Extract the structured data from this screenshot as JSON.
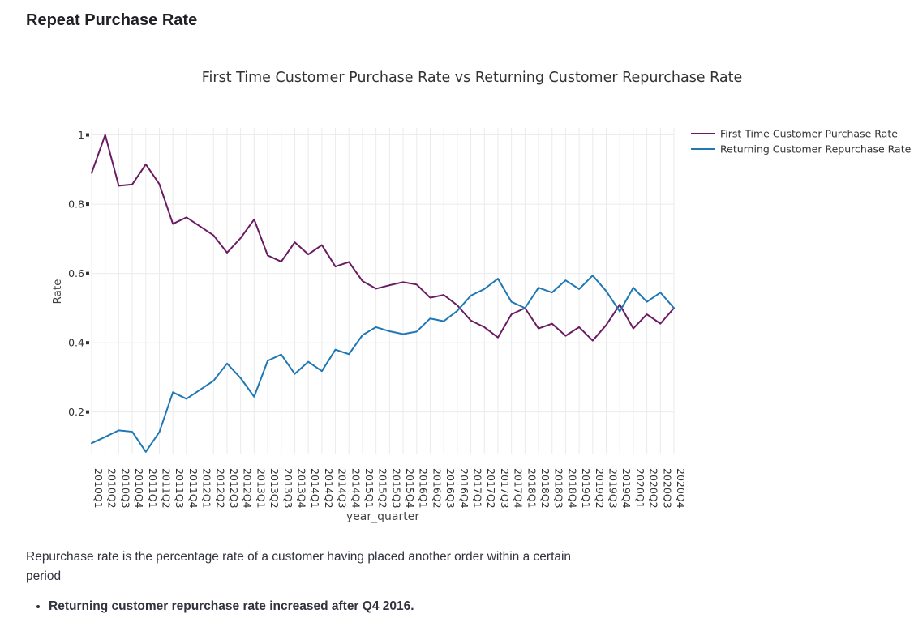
{
  "page": {
    "heading": "Repeat Purchase Rate",
    "description": "Repurchase rate is the percentage rate of a customer having placed another order within a certain period",
    "bullets": [
      "Returning customer repurchase rate increased after Q4 2016."
    ]
  },
  "colors": {
    "first_time": "#6a1b62",
    "returning": "#1f77b4",
    "grid": "#ebebeb",
    "text": "#444444"
  },
  "chart_data": {
    "type": "line",
    "title": "First Time Customer Purchase Rate vs Returning Customer Repurchase Rate",
    "xlabel": "year_quarter",
    "ylabel": "Rate",
    "ylim": [
      0.08,
      1.02
    ],
    "yticks": [
      0.2,
      0.4,
      0.6,
      0.8,
      1
    ],
    "ytick_labels": [
      "0.2",
      "0.4",
      "0.6",
      "0.8",
      "1"
    ],
    "grid": true,
    "legend": "top-right",
    "categories": [
      "2010Q1",
      "2010Q2",
      "2010Q3",
      "2010Q4",
      "2011Q1",
      "2011Q2",
      "2011Q3",
      "2011Q4",
      "2012Q1",
      "2012Q2",
      "2012Q3",
      "2012Q4",
      "2013Q1",
      "2013Q2",
      "2013Q3",
      "2013Q4",
      "2014Q1",
      "2014Q2",
      "2014Q3",
      "2014Q4",
      "2015Q1",
      "2015Q2",
      "2015Q3",
      "2015Q4",
      "2016Q1",
      "2016Q2",
      "2016Q3",
      "2016Q4",
      "2017Q1",
      "2017Q2",
      "2017Q3",
      "2017Q4",
      "2018Q1",
      "2018Q2",
      "2018Q3",
      "2018Q4",
      "2019Q1",
      "2019Q2",
      "2019Q3",
      "2019Q4",
      "2020Q1",
      "2020Q2",
      "2020Q3",
      "2020Q4"
    ],
    "series": [
      {
        "name": "First Time Customer Purchase Rate",
        "color": "#6a1b62",
        "values": [
          0.89,
          1.0,
          0.853,
          0.857,
          0.915,
          0.858,
          0.743,
          0.762,
          0.736,
          0.71,
          0.66,
          0.702,
          0.756,
          0.652,
          0.634,
          0.69,
          0.655,
          0.682,
          0.62,
          0.633,
          0.578,
          0.556,
          0.566,
          0.575,
          0.568,
          0.53,
          0.538,
          0.508,
          0.464,
          0.445,
          0.415,
          0.482,
          0.5,
          0.441,
          0.455,
          0.42,
          0.445,
          0.406,
          0.451,
          0.51,
          0.441,
          0.482,
          0.455,
          0.5
        ]
      },
      {
        "name": "Returning Customer Repurchase Rate",
        "color": "#1f77b4",
        "values": [
          0.11,
          0.128,
          0.147,
          0.143,
          0.085,
          0.142,
          0.257,
          0.238,
          0.264,
          0.29,
          0.34,
          0.298,
          0.244,
          0.348,
          0.366,
          0.31,
          0.345,
          0.318,
          0.38,
          0.367,
          0.422,
          0.445,
          0.433,
          0.425,
          0.432,
          0.47,
          0.462,
          0.492,
          0.536,
          0.555,
          0.585,
          0.518,
          0.5,
          0.559,
          0.545,
          0.58,
          0.555,
          0.594,
          0.549,
          0.49,
          0.559,
          0.518,
          0.545,
          0.5
        ]
      }
    ]
  }
}
